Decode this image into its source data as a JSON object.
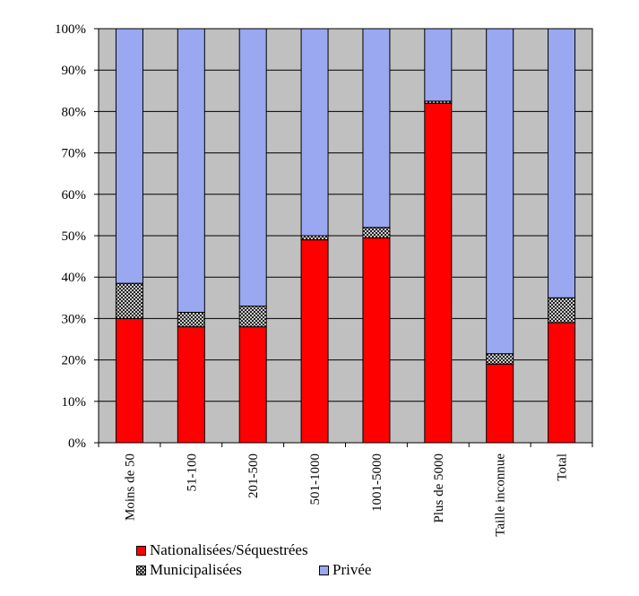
{
  "chart_data": {
    "type": "bar",
    "stacked": true,
    "percent": true,
    "categories": [
      "Moins de 50",
      "51-100",
      "201-500",
      "501-1000",
      "1001-5000",
      "Plus de 5000",
      "Taille inconnue",
      "Total"
    ],
    "series": [
      {
        "name": "Nationalisées/Séquestrées",
        "color": "#ff0000",
        "values": [
          30,
          28,
          28,
          49,
          49.5,
          82,
          19,
          29
        ]
      },
      {
        "name": "Municipalisées",
        "color": "#ffffff",
        "pattern": "crosshatch",
        "values": [
          8.5,
          3.5,
          5,
          1,
          2.5,
          0.5,
          2.5,
          6
        ]
      },
      {
        "name": "Privée",
        "color": "#99a8f0",
        "values": [
          61.5,
          68.5,
          67,
          50,
          48,
          17.5,
          78.5,
          65
        ]
      }
    ],
    "yticks": [
      "0%",
      "10%",
      "20%",
      "30%",
      "40%",
      "50%",
      "60%",
      "70%",
      "80%",
      "90%",
      "100%"
    ],
    "ylim": [
      0,
      100
    ],
    "grid": true,
    "plot_background": "#c0c0c0",
    "legend_position": "bottom"
  }
}
